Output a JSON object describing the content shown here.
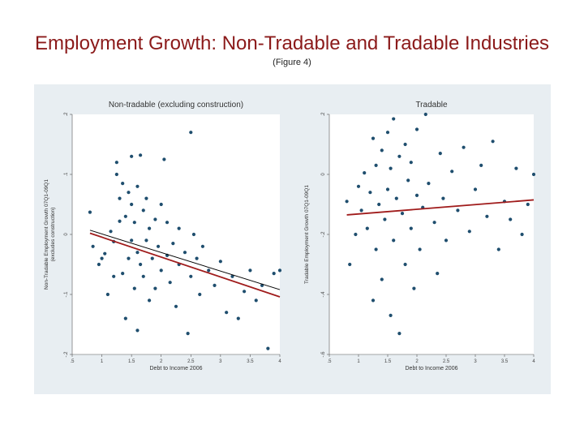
{
  "header": {
    "title": "Employment Growth: Non-Tradable and Tradable Industries",
    "subtitle": "(Figure 4)"
  },
  "colors": {
    "title": "#8b1a1a",
    "panel_background": "#e8eef2",
    "plot_background": "#ffffff",
    "point": "#1f4e6e",
    "fit_red": "#a01c1c",
    "fit_black": "#000000"
  },
  "chart_data": [
    {
      "type": "scatter",
      "title": "Non-tradable (excluding construction)",
      "xlabel": "Debt to Income 2006",
      "ylabel": "Non-Tradable Employment Growth 07Q1-09Q1\n(excludes construction)",
      "xlim": [
        0.5,
        4
      ],
      "ylim": [
        -0.2,
        0.2
      ],
      "x_ticks": [
        ".5",
        "1",
        "1.5",
        "2",
        "2.5",
        "3",
        "3.5",
        "4"
      ],
      "x_tick_values": [
        0.5,
        1,
        1.5,
        2,
        2.5,
        3,
        3.5,
        4
      ],
      "y_ticks": [
        "-.2",
        "-.1",
        "0",
        ".1",
        ".2"
      ],
      "y_tick_values": [
        -0.2,
        -0.1,
        0,
        0.1,
        0.2
      ],
      "grid": false,
      "legend": "none",
      "fit_lines": [
        {
          "x": [
            0.8,
            4.0
          ],
          "y": [
            0.002,
            -0.104
          ],
          "color": "red"
        },
        {
          "x": [
            0.8,
            4.0
          ],
          "y": [
            0.007,
            -0.092
          ],
          "color": "black"
        }
      ],
      "points": [
        [
          0.8,
          0.037
        ],
        [
          0.85,
          -0.02
        ],
        [
          0.95,
          -0.05
        ],
        [
          1.0,
          -0.04
        ],
        [
          1.05,
          -0.032
        ],
        [
          1.1,
          -0.1
        ],
        [
          1.15,
          0.005
        ],
        [
          1.2,
          -0.07
        ],
        [
          1.2,
          -0.012
        ],
        [
          1.25,
          0.12
        ],
        [
          1.25,
          0.1
        ],
        [
          1.3,
          0.022
        ],
        [
          1.3,
          0.06
        ],
        [
          1.35,
          0.085
        ],
        [
          1.35,
          -0.065
        ],
        [
          1.4,
          0.03
        ],
        [
          1.4,
          -0.14
        ],
        [
          1.45,
          0.07
        ],
        [
          1.45,
          -0.04
        ],
        [
          1.5,
          0.13
        ],
        [
          1.5,
          0.05
        ],
        [
          1.5,
          -0.01
        ],
        [
          1.55,
          -0.09
        ],
        [
          1.55,
          0.02
        ],
        [
          1.6,
          -0.16
        ],
        [
          1.6,
          0.08
        ],
        [
          1.6,
          -0.03
        ],
        [
          1.65,
          0.132
        ],
        [
          1.65,
          -0.05
        ],
        [
          1.7,
          0.04
        ],
        [
          1.7,
          -0.07
        ],
        [
          1.75,
          -0.01
        ],
        [
          1.75,
          0.06
        ],
        [
          1.8,
          -0.11
        ],
        [
          1.8,
          0.01
        ],
        [
          1.85,
          -0.04
        ],
        [
          1.9,
          0.025
        ],
        [
          1.9,
          -0.09
        ],
        [
          1.95,
          -0.02
        ],
        [
          2.0,
          0.05
        ],
        [
          2.0,
          -0.06
        ],
        [
          2.05,
          0.125
        ],
        [
          2.1,
          -0.035
        ],
        [
          2.1,
          0.02
        ],
        [
          2.15,
          -0.08
        ],
        [
          2.2,
          -0.015
        ],
        [
          2.25,
          -0.12
        ],
        [
          2.3,
          0.01
        ],
        [
          2.3,
          -0.05
        ],
        [
          2.4,
          -0.03
        ],
        [
          2.45,
          -0.165
        ],
        [
          2.5,
          0.17
        ],
        [
          2.5,
          -0.07
        ],
        [
          2.55,
          0.0
        ],
        [
          2.6,
          -0.04
        ],
        [
          2.65,
          -0.1
        ],
        [
          2.7,
          -0.02
        ],
        [
          2.8,
          -0.06
        ],
        [
          2.9,
          -0.085
        ],
        [
          3.0,
          -0.045
        ],
        [
          3.1,
          -0.13
        ],
        [
          3.2,
          -0.07
        ],
        [
          3.3,
          -0.14
        ],
        [
          3.4,
          -0.095
        ],
        [
          3.5,
          -0.06
        ],
        [
          3.6,
          -0.11
        ],
        [
          3.7,
          -0.085
        ],
        [
          3.8,
          -0.19
        ],
        [
          3.9,
          -0.065
        ],
        [
          4.0,
          -0.06
        ]
      ]
    },
    {
      "type": "scatter",
      "title": "Tradable",
      "xlabel": "Debt to Income 2006",
      "ylabel": "Tradable Employment Growth 07Q1-09Q1",
      "xlim": [
        0.5,
        4
      ],
      "ylim": [
        -0.6,
        0.2
      ],
      "x_ticks": [
        ".5",
        "1",
        "1.5",
        "2",
        "2.5",
        "3",
        "3.5",
        "4"
      ],
      "x_tick_values": [
        0.5,
        1,
        1.5,
        2,
        2.5,
        3,
        3.5,
        4
      ],
      "y_ticks": [
        "-.6",
        "-.4",
        "-.2",
        "0",
        ".2"
      ],
      "y_tick_values": [
        -0.6,
        -0.4,
        -0.2,
        0,
        0.2
      ],
      "grid": false,
      "legend": "none",
      "fit_lines": [
        {
          "x": [
            0.8,
            4.0
          ],
          "y": [
            -0.135,
            -0.085
          ],
          "color": "red"
        }
      ],
      "points": [
        [
          0.8,
          -0.09
        ],
        [
          0.85,
          -0.3
        ],
        [
          0.95,
          -0.2
        ],
        [
          1.0,
          -0.04
        ],
        [
          1.05,
          -0.12
        ],
        [
          1.1,
          0.005
        ],
        [
          1.15,
          -0.18
        ],
        [
          1.2,
          -0.06
        ],
        [
          1.25,
          0.12
        ],
        [
          1.25,
          -0.42
        ],
        [
          1.3,
          0.03
        ],
        [
          1.3,
          -0.25
        ],
        [
          1.35,
          -0.1
        ],
        [
          1.4,
          0.08
        ],
        [
          1.4,
          -0.35
        ],
        [
          1.45,
          -0.15
        ],
        [
          1.5,
          0.14
        ],
        [
          1.5,
          -0.05
        ],
        [
          1.55,
          -0.47
        ],
        [
          1.55,
          0.02
        ],
        [
          1.6,
          -0.22
        ],
        [
          1.6,
          0.185
        ],
        [
          1.65,
          -0.08
        ],
        [
          1.7,
          -0.53
        ],
        [
          1.7,
          0.06
        ],
        [
          1.75,
          -0.13
        ],
        [
          1.8,
          -0.3
        ],
        [
          1.8,
          0.1
        ],
        [
          1.85,
          -0.02
        ],
        [
          1.9,
          -0.18
        ],
        [
          1.9,
          0.04
        ],
        [
          1.95,
          -0.38
        ],
        [
          2.0,
          -0.07
        ],
        [
          2.0,
          0.15
        ],
        [
          2.05,
          -0.25
        ],
        [
          2.1,
          -0.11
        ],
        [
          2.15,
          0.2
        ],
        [
          2.2,
          -0.03
        ],
        [
          2.3,
          -0.16
        ],
        [
          2.35,
          -0.33
        ],
        [
          2.4,
          0.07
        ],
        [
          2.45,
          -0.08
        ],
        [
          2.5,
          -0.22
        ],
        [
          2.6,
          0.01
        ],
        [
          2.7,
          -0.12
        ],
        [
          2.8,
          0.09
        ],
        [
          2.9,
          -0.19
        ],
        [
          3.0,
          -0.05
        ],
        [
          3.1,
          0.03
        ],
        [
          3.2,
          -0.14
        ],
        [
          3.3,
          0.11
        ],
        [
          3.4,
          -0.25
        ],
        [
          3.5,
          -0.09
        ],
        [
          3.6,
          -0.15
        ],
        [
          3.7,
          0.02
        ],
        [
          3.8,
          -0.2
        ],
        [
          3.9,
          -0.1
        ],
        [
          4.0,
          0.0
        ]
      ]
    }
  ]
}
